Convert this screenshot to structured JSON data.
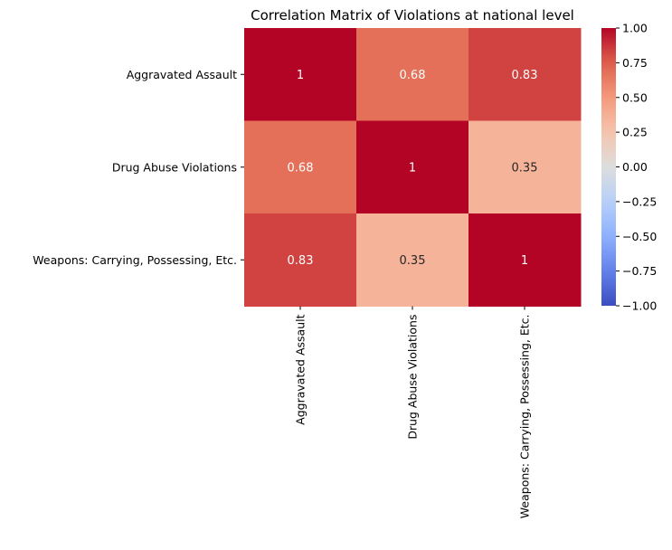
{
  "chart_data": {
    "type": "heatmap",
    "title": "Correlation Matrix of Violations at national level",
    "rows": [
      "Aggravated Assault",
      "Drug Abuse Violations",
      "Weapons: Carrying, Possessing, Etc."
    ],
    "columns": [
      "Aggravated Assault",
      "Drug Abuse Violations",
      "Weapons: Carrying, Possessing, Etc."
    ],
    "values": [
      [
        1,
        0.68,
        0.83
      ],
      [
        0.68,
        1,
        0.35
      ],
      [
        0.83,
        0.35,
        1
      ]
    ],
    "cell_labels": [
      [
        "1",
        "0.68",
        "0.83"
      ],
      [
        "0.68",
        "1",
        "0.35"
      ],
      [
        "0.83",
        "0.35",
        "1"
      ]
    ],
    "colormap": "coolwarm",
    "vmin": -1,
    "vmax": 1,
    "colorbar_ticks": [
      1.0,
      0.75,
      0.5,
      0.25,
      0.0,
      -0.25,
      -0.5,
      -0.75,
      -1.0
    ],
    "colorbar_tick_labels": [
      "1.00",
      "0.75",
      "0.50",
      "0.25",
      "0.00",
      "−0.25",
      "−0.50",
      "−0.75",
      "−1.00"
    ],
    "grid": false,
    "colorbar_position": "right"
  }
}
